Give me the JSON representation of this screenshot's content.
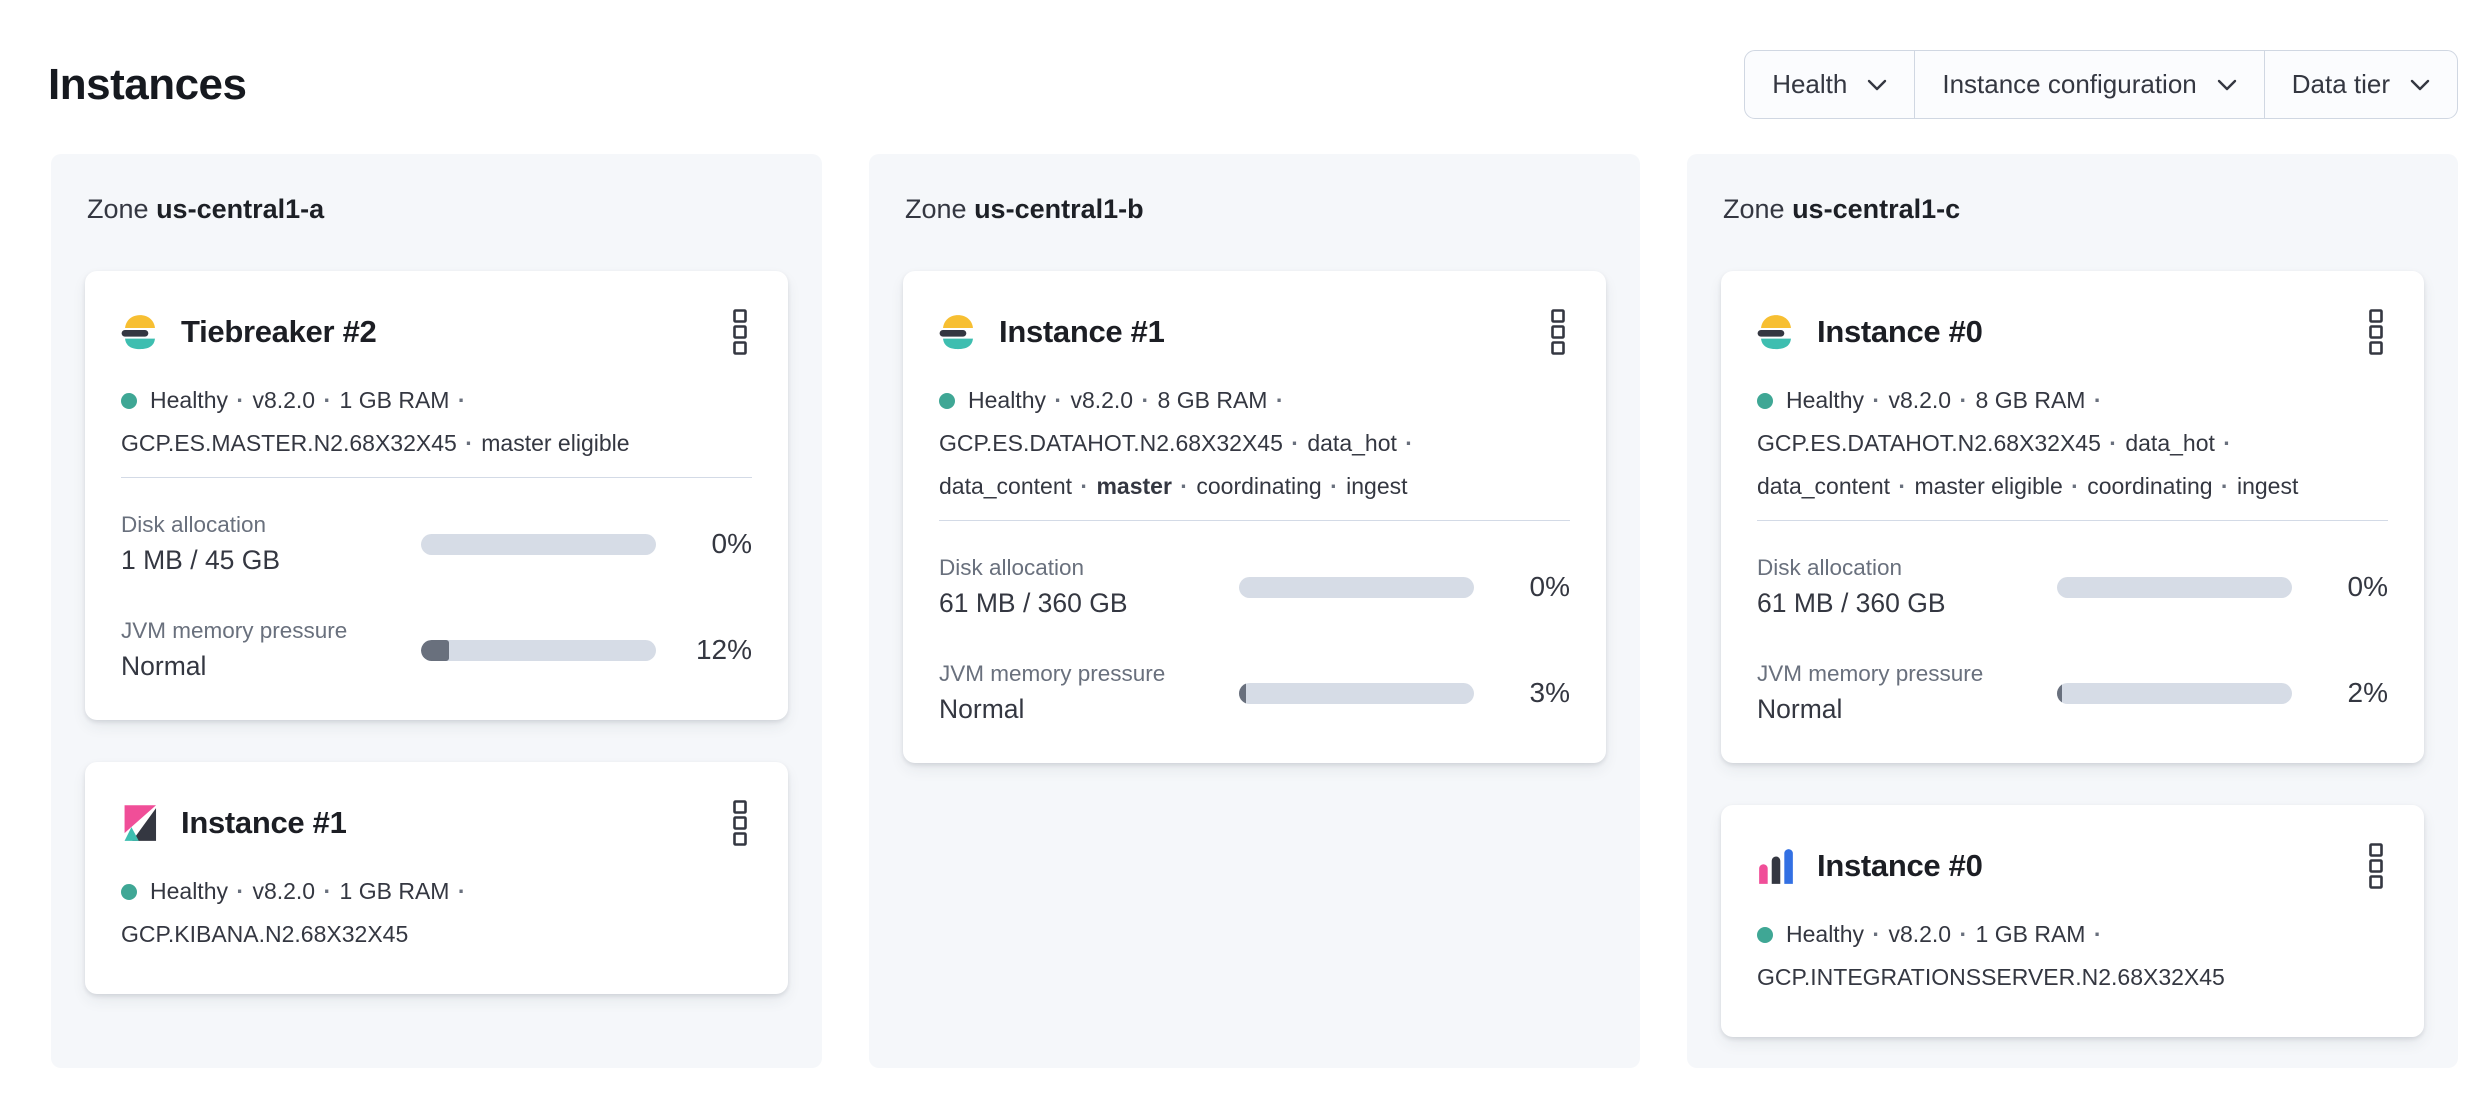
{
  "page": {
    "title": "Instances"
  },
  "ui": {
    "zone_prefix": "Zone",
    "separator": "·"
  },
  "filters": [
    {
      "label": "Health"
    },
    {
      "label": "Instance configuration"
    },
    {
      "label": "Data tier"
    }
  ],
  "colors": {
    "healthy_dot": "#3FA795",
    "elastic_yellow": "#F7BF32",
    "elastic_dark": "#343741",
    "elastic_teal": "#3EBEB0",
    "kibana_pink": "#F04E98",
    "integrations_blue": "#3370E3",
    "progress_track": "#D6DCE6",
    "progress_fill": "#69707D"
  },
  "zones": [
    {
      "name": "us-central1-a",
      "cards": [
        {
          "type": "elasticsearch",
          "title": "Tiebreaker #2",
          "status_tokens": [
            "Healthy",
            "v8.2.0",
            "1 GB RAM",
            "GCP.ES.MASTER.N2.68X32X45",
            "master eligible"
          ],
          "metrics": [
            {
              "label": "Disk allocation",
              "value": "1 MB / 45 GB",
              "percent": "0%",
              "fill_width": "0%"
            },
            {
              "label": "JVM memory pressure",
              "value": "Normal",
              "percent": "12%",
              "fill_width": "12%"
            }
          ]
        },
        {
          "type": "kibana",
          "title": "Instance #1",
          "status_tokens": [
            "Healthy",
            "v8.2.0",
            "1 GB RAM",
            "GCP.KIBANA.N2.68X32X45"
          ]
        }
      ]
    },
    {
      "name": "us-central1-b",
      "cards": [
        {
          "type": "elasticsearch",
          "title": "Instance #1",
          "status_tokens": [
            "Healthy",
            "v8.2.0",
            "8 GB RAM",
            "GCP.ES.DATAHOT.N2.68X32X45",
            "data_hot",
            "data_content",
            "master",
            "coordinating",
            "ingest"
          ],
          "metrics": [
            {
              "label": "Disk allocation",
              "value": "61 MB / 360 GB",
              "percent": "0%",
              "fill_width": "0%"
            },
            {
              "label": "JVM memory pressure",
              "value": "Normal",
              "percent": "3%",
              "fill_width": "3%"
            }
          ]
        }
      ]
    },
    {
      "name": "us-central1-c",
      "cards": [
        {
          "type": "elasticsearch",
          "title": "Instance #0",
          "status_tokens": [
            "Healthy",
            "v8.2.0",
            "8 GB RAM",
            "GCP.ES.DATAHOT.N2.68X32X45",
            "data_hot",
            "data_content",
            "master eligible",
            "coordinating",
            "ingest"
          ],
          "metrics": [
            {
              "label": "Disk allocation",
              "value": "61 MB / 360 GB",
              "percent": "0%",
              "fill_width": "0%"
            },
            {
              "label": "JVM memory pressure",
              "value": "Normal",
              "percent": "2%",
              "fill_width": "2%"
            }
          ]
        },
        {
          "type": "integrations_server",
          "title": "Instance #0",
          "status_tokens": [
            "Healthy",
            "v8.2.0",
            "1 GB RAM",
            "GCP.INTEGRATIONSSERVER.N2.68X32X45"
          ]
        }
      ]
    }
  ]
}
